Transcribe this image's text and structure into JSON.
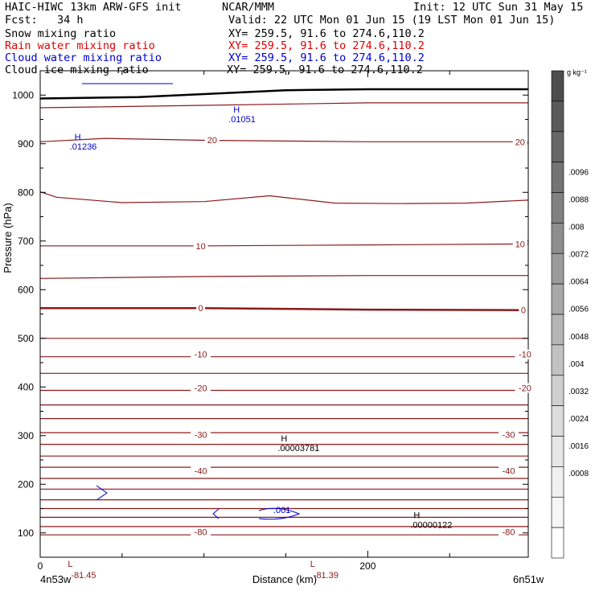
{
  "header": {
    "model_title": "HAIC-HIWC 13km ARW-GFS init",
    "org": "NCAR/MMM",
    "init": "Init: 12 UTC Sun 31 May 15",
    "fcst": "Fcst:   34 h",
    "valid": "Valid: 22 UTC Mon 01 Jun 15 (19 LST Mon 01 Jun 15)",
    "fields": [
      {
        "name": "Snow mixing ratio",
        "xy": "XY= 259.5, 91.6 to 274.6,110.2",
        "color": "#000000"
      },
      {
        "name": "Rain water mixing ratio",
        "xy": "XY= 259.5, 91.6 to 274.6,110.2",
        "color": "#e00000"
      },
      {
        "name": "Cloud water mixing ratio",
        "xy": "XY= 259.5, 91.6 to 274.6,110.2",
        "color": "#0000d0"
      },
      {
        "name": "Cloud ice mixing ratio",
        "xy": "XY= 259.5, 91.6 to 274.6,110.2",
        "color": "#000000"
      }
    ]
  },
  "chart_data": {
    "type": "cross-section contour",
    "xlabel": "Distance (km)",
    "ylabel": "Pressure (hPa)",
    "xlim": [
      0,
      298
    ],
    "ylim": [
      1050,
      50
    ],
    "x_ticks": [
      0,
      200
    ],
    "y_ticks": [
      100,
      200,
      300,
      400,
      500,
      600,
      700,
      800,
      900,
      1000
    ],
    "left_location": "4n53w",
    "right_location": "6n51w",
    "temperature_contours": {
      "color": "#8b1a1a",
      "levels": [
        {
          "p": [
            [
              0,
              96
            ],
            [
              298,
              96
            ]
          ]
        },
        {
          "p": [
            [
              0,
              113
            ],
            [
              298,
              113
            ]
          ]
        },
        {
          "p": [
            [
              0,
              132
            ],
            [
              298,
              132
            ]
          ]
        },
        {
          "p": [
            [
              0,
              150
            ],
            [
              298,
              150
            ]
          ]
        },
        {
          "p": [
            [
              0,
              168
            ],
            [
              298,
              168
            ]
          ]
        },
        {
          "p": [
            [
              0,
              190
            ],
            [
              298,
              190
            ]
          ]
        },
        {
          "p": [
            [
              0,
              212
            ],
            [
              298,
              212
            ]
          ]
        },
        {
          "p": [
            [
              0,
              235
            ],
            [
              298,
              235
            ]
          ]
        },
        {
          "p": [
            [
              0,
              258
            ],
            [
              298,
              258
            ]
          ]
        },
        {
          "p": [
            [
              0,
              282
            ],
            [
              298,
              282
            ]
          ]
        },
        {
          "p": [
            [
              0,
              306
            ],
            [
              298,
              306
            ]
          ]
        },
        {
          "p": [
            [
              0,
              335
            ],
            [
              298,
              335
            ]
          ]
        },
        {
          "p": [
            [
              0,
              363
            ],
            [
              298,
              363
            ]
          ]
        },
        {
          "p": [
            [
              0,
              393
            ],
            [
              298,
              393
            ]
          ]
        },
        {
          "p": [
            [
              0,
              428
            ],
            [
              298,
              428
            ]
          ]
        },
        {
          "p": [
            [
              0,
              462
            ],
            [
              298,
              462
            ]
          ]
        },
        {
          "p": [
            [
              0,
              500
            ],
            [
              298,
              500
            ]
          ]
        },
        {
          "p": [
            [
              0,
              562
            ],
            [
              100,
              562
            ],
            [
              200,
              559
            ],
            [
              298,
              558
            ]
          ],
          "bold": true
        },
        {
          "p": [
            [
              0,
              623
            ],
            [
              100,
              627
            ],
            [
              200,
              629
            ],
            [
              298,
              629
            ]
          ]
        },
        {
          "p": [
            [
              0,
              690
            ],
            [
              100,
              690
            ],
            [
              200,
              692
            ],
            [
              298,
              694
            ]
          ]
        },
        {
          "p": [
            [
              0,
              801
            ],
            [
              10,
              790
            ],
            [
              50,
              779
            ],
            [
              100,
              781
            ],
            [
              140,
              793
            ],
            [
              180,
              778
            ],
            [
              220,
              777
            ],
            [
              260,
              778
            ],
            [
              298,
              784
            ]
          ]
        },
        {
          "p": [
            [
              0,
              904
            ],
            [
              40,
              911
            ],
            [
              100,
              907
            ],
            [
              200,
              904
            ],
            [
              298,
              904
            ]
          ]
        },
        {
          "p": [
            [
              0,
              974
            ],
            [
              100,
              979
            ],
            [
              200,
              984
            ],
            [
              298,
              984
            ]
          ]
        }
      ],
      "labels": [
        {
          "x": 98,
          "p": 102,
          "text": "-80"
        },
        {
          "x": 286,
          "p": 102,
          "text": "-80"
        },
        {
          "x": 98,
          "p": 228,
          "text": "-40"
        },
        {
          "x": 286,
          "p": 228,
          "text": "-40"
        },
        {
          "x": 98,
          "p": 302,
          "text": "-30"
        },
        {
          "x": 286,
          "p": 302,
          "text": "-30"
        },
        {
          "x": 98,
          "p": 398,
          "text": "-20"
        },
        {
          "x": 296,
          "p": 398,
          "text": "-20"
        },
        {
          "x": 98,
          "p": 467,
          "text": "-10"
        },
        {
          "x": 296,
          "p": 467,
          "text": "-10"
        },
        {
          "x": 98,
          "p": 562,
          "text": "0"
        },
        {
          "x": 295,
          "p": 558,
          "text": "0"
        },
        {
          "x": 98,
          "p": 690,
          "text": "10"
        },
        {
          "x": 293,
          "p": 694,
          "text": "10"
        },
        {
          "x": 105,
          "p": 908,
          "text": "20"
        },
        {
          "x": 293,
          "p": 904,
          "text": "20"
        }
      ],
      "extrema": [
        {
          "x": 9,
          "p": 78,
          "mark": "L",
          "value": "-81.45"
        },
        {
          "x": 157,
          "p": 78,
          "mark": "L",
          "value": "-81.39"
        }
      ]
    },
    "snow_extrema": [
      {
        "x": 226,
        "p": 130,
        "mark": "H",
        "value": ".00000122"
      },
      {
        "x": 145,
        "p": 288,
        "mark": "H",
        "value": ".00003781"
      }
    ],
    "cloud_water": {
      "color": "#0000d0",
      "extrema": [
        {
          "x": 18,
          "p": 908,
          "mark": "H",
          "value": ".01236"
        },
        {
          "x": 115,
          "p": 964,
          "mark": "H",
          "value": ".01051"
        }
      ],
      "contour_label": ".001"
    },
    "terrain": {
      "p": [
        [
          0,
          993
        ],
        [
          60,
          996
        ],
        [
          100,
          1002
        ],
        [
          150,
          1010
        ],
        [
          200,
          1012
        ],
        [
          298,
          1012
        ]
      ],
      "color": "#000000"
    },
    "colorbar": {
      "unit": "g kg⁻¹",
      "labels": [
        ".0096",
        ".0088",
        ".008",
        ".0072",
        ".0064",
        ".0056",
        ".0048",
        ".004",
        ".0032",
        ".0024",
        ".0016",
        ".0008"
      ],
      "colors": [
        "#4d4d4d",
        "#5a5a5a",
        "#676767",
        "#747474",
        "#818181",
        "#8e8e8e",
        "#9b9b9b",
        "#a8a8a8",
        "#b5b5b5",
        "#c2c2c2",
        "#cfcfcf",
        "#dcdcdc",
        "#e6e6e6",
        "#f0f0f0",
        "#f6f6f6",
        "#ffffff"
      ]
    }
  }
}
